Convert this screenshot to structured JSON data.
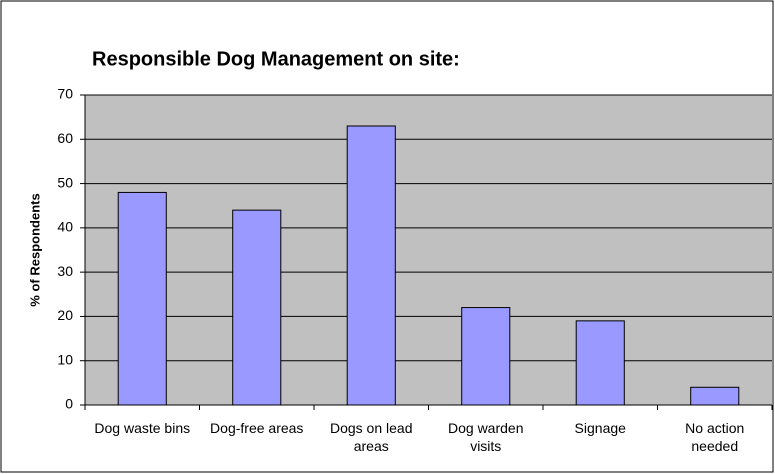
{
  "chart_data": {
    "type": "bar",
    "title": "Responsible Dog Management on site:",
    "ylabel": "% of Respondents",
    "categories": [
      "Dog waste bins",
      "Dog-free areas",
      "Dogs on lead areas",
      "Dog warden visits",
      "Signage",
      "No action needed"
    ],
    "values": [
      48,
      44,
      63,
      22,
      19,
      4
    ],
    "color": "#9999ff",
    "ylim": [
      0,
      70
    ],
    "yticks": [
      0,
      10,
      20,
      30,
      40,
      50,
      60,
      70
    ],
    "grid": true
  }
}
